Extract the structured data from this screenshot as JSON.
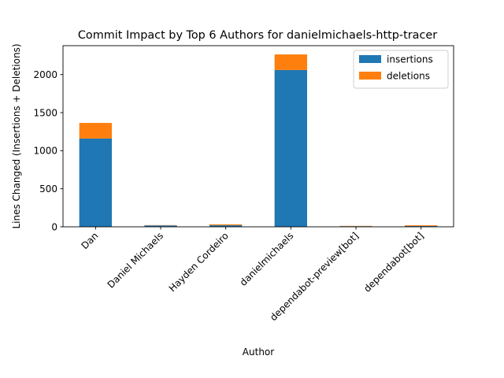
{
  "chart_data": {
    "type": "bar",
    "stacked": true,
    "title": "Commit Impact by Top 6 Authors for danielmichaels-http-tracer",
    "xlabel": "Author",
    "ylabel": "Lines Changed (Insertions + Deletions)",
    "categories": [
      "Dan",
      "Daniel Michaels",
      "Hayden Cordeiro",
      "danielmichaels",
      "dependabot-preview[bot]",
      "dependabot[bot]"
    ],
    "series": [
      {
        "name": "insertions",
        "color": "#1f77b4",
        "values": [
          1160,
          18,
          20,
          2060,
          8,
          10
        ]
      },
      {
        "name": "deletions",
        "color": "#ff7f0e",
        "values": [
          205,
          4,
          12,
          205,
          4,
          10
        ]
      }
    ],
    "ylim": [
      0,
      2380
    ],
    "yticks": [
      0,
      500,
      1000,
      1500,
      2000
    ],
    "grid": false,
    "legend": "top-right"
  }
}
